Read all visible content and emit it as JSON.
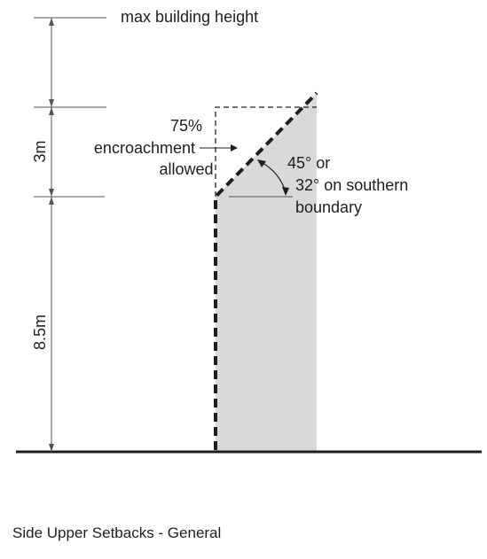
{
  "labels": {
    "max_height": "max building height",
    "encroachment_pct": "75%",
    "encroachment_word": "encroachment",
    "encroachment_allowed": "allowed",
    "angle_line1": "45° or",
    "angle_line2": "32° on southern",
    "angle_line3": "boundary",
    "dim_upper": "3m",
    "dim_lower": "8.5m"
  },
  "caption": "Side Upper Setbacks - General",
  "colors": {
    "line": "#1e1e1e",
    "building_fill": "#d9d9d9",
    "dim_line": "#555555"
  }
}
